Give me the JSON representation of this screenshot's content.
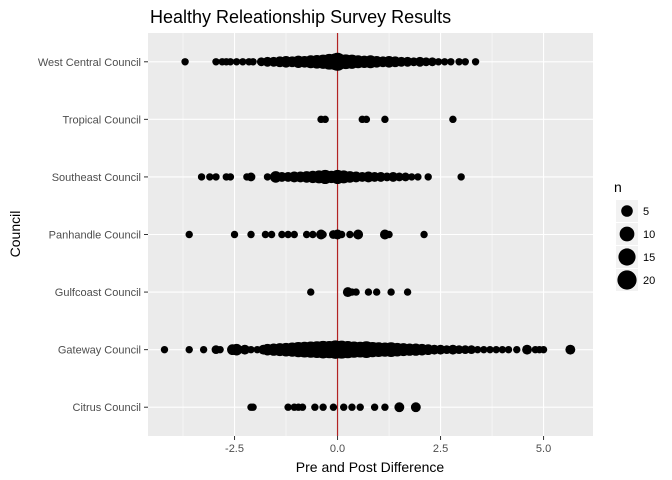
{
  "chart_data": {
    "type": "scatter",
    "title": "Healthy Releationship Survey Results",
    "xlabel": "Pre and Post Difference",
    "ylabel": "Council",
    "xlim": [
      -4.6,
      6.2
    ],
    "x_ticks": [
      -2.5,
      0.0,
      2.5,
      5.0
    ],
    "x_tick_labels": [
      "-2.5",
      "0.0",
      "2.5",
      "5.0"
    ],
    "categories": [
      "Citrus Council",
      "Gateway Council",
      "Gulfcoast Council",
      "Panhandle Council",
      "Southeast Council",
      "Tropical Council",
      "West Central Council"
    ],
    "grid": true,
    "reference_line": {
      "x": 0,
      "color": "#b22222"
    },
    "point_color": "#000000",
    "panel_color": "#ebebeb",
    "size_legend": {
      "title": "n",
      "position": "right",
      "values": [
        5,
        10,
        15,
        20
      ],
      "labels": [
        "5",
        "10",
        "15",
        "20"
      ]
    },
    "series": [
      {
        "category": "Citrus Council",
        "points": [
          [
            -2.1,
            1
          ],
          [
            -2.05,
            1
          ],
          [
            -1.2,
            1
          ],
          [
            -1.05,
            1
          ],
          [
            -0.95,
            1
          ],
          [
            -0.85,
            1
          ],
          [
            -0.55,
            1
          ],
          [
            -0.35,
            1
          ],
          [
            -0.1,
            1
          ],
          [
            0.15,
            1
          ],
          [
            0.35,
            1
          ],
          [
            0.55,
            1
          ],
          [
            0.9,
            1
          ],
          [
            1.15,
            1
          ],
          [
            1.5,
            3
          ],
          [
            1.9,
            3
          ]
        ]
      },
      {
        "category": "Gateway Council",
        "points": [
          [
            -4.2,
            1
          ],
          [
            -3.6,
            1
          ],
          [
            -3.25,
            1
          ],
          [
            -2.95,
            2
          ],
          [
            -2.85,
            1
          ],
          [
            -2.55,
            4
          ],
          [
            -2.45,
            5
          ],
          [
            -2.25,
            3
          ],
          [
            -2.1,
            1
          ],
          [
            -1.95,
            1
          ],
          [
            -1.8,
            3
          ],
          [
            -1.7,
            5
          ],
          [
            -1.55,
            6
          ],
          [
            -1.4,
            7
          ],
          [
            -1.25,
            8
          ],
          [
            -1.1,
            9
          ],
          [
            -0.95,
            11
          ],
          [
            -0.8,
            12
          ],
          [
            -0.65,
            13
          ],
          [
            -0.5,
            14
          ],
          [
            -0.35,
            16
          ],
          [
            -0.2,
            15
          ],
          [
            -0.05,
            18
          ],
          [
            0.1,
            17
          ],
          [
            0.25,
            15
          ],
          [
            0.4,
            13
          ],
          [
            0.55,
            12
          ],
          [
            0.7,
            14
          ],
          [
            0.85,
            11
          ],
          [
            1.0,
            10
          ],
          [
            1.15,
            9
          ],
          [
            1.3,
            10
          ],
          [
            1.45,
            8
          ],
          [
            1.6,
            7
          ],
          [
            1.75,
            6
          ],
          [
            1.9,
            6
          ],
          [
            2.05,
            5
          ],
          [
            2.2,
            4
          ],
          [
            2.35,
            3
          ],
          [
            2.5,
            3
          ],
          [
            2.65,
            2
          ],
          [
            2.8,
            3
          ],
          [
            2.95,
            2
          ],
          [
            3.1,
            2
          ],
          [
            3.25,
            2
          ],
          [
            3.4,
            1
          ],
          [
            3.55,
            1
          ],
          [
            3.7,
            1
          ],
          [
            3.85,
            1
          ],
          [
            4.0,
            1
          ],
          [
            4.15,
            1
          ],
          [
            4.35,
            1
          ],
          [
            4.6,
            3
          ],
          [
            4.8,
            1
          ],
          [
            4.9,
            1
          ],
          [
            5.0,
            1
          ],
          [
            5.65,
            3
          ]
        ]
      },
      {
        "category": "Gulfcoast Council",
        "points": [
          [
            -0.65,
            1
          ],
          [
            0.25,
            3
          ],
          [
            0.35,
            1
          ],
          [
            0.45,
            1
          ],
          [
            0.75,
            1
          ],
          [
            0.95,
            1
          ],
          [
            1.3,
            1
          ],
          [
            1.7,
            1
          ]
        ]
      },
      {
        "category": "Panhandle Council",
        "points": [
          [
            -3.6,
            1
          ],
          [
            -2.5,
            1
          ],
          [
            -2.1,
            1
          ],
          [
            -1.75,
            1
          ],
          [
            -1.6,
            1
          ],
          [
            -1.35,
            1
          ],
          [
            -1.2,
            1
          ],
          [
            -1.05,
            1
          ],
          [
            -0.75,
            1
          ],
          [
            -0.6,
            1
          ],
          [
            -0.4,
            3
          ],
          [
            -0.35,
            1
          ],
          [
            -0.1,
            2
          ],
          [
            0.0,
            3
          ],
          [
            0.1,
            1
          ],
          [
            0.3,
            1
          ],
          [
            0.5,
            3
          ],
          [
            1.15,
            3
          ],
          [
            1.25,
            1
          ],
          [
            2.1,
            1
          ]
        ]
      },
      {
        "category": "Southeast Council",
        "points": [
          [
            -3.3,
            1
          ],
          [
            -3.1,
            1
          ],
          [
            -2.95,
            1
          ],
          [
            -2.7,
            1
          ],
          [
            -2.6,
            1
          ],
          [
            -2.2,
            1
          ],
          [
            -2.1,
            2
          ],
          [
            -1.7,
            1
          ],
          [
            -1.5,
            5
          ],
          [
            -1.35,
            3
          ],
          [
            -1.2,
            3
          ],
          [
            -1.05,
            4
          ],
          [
            -0.9,
            4
          ],
          [
            -0.75,
            5
          ],
          [
            -0.6,
            6
          ],
          [
            -0.45,
            7
          ],
          [
            -0.3,
            9
          ],
          [
            -0.15,
            6
          ],
          [
            0.0,
            9
          ],
          [
            0.15,
            7
          ],
          [
            0.3,
            5
          ],
          [
            0.45,
            4
          ],
          [
            0.6,
            3
          ],
          [
            0.75,
            4
          ],
          [
            0.9,
            3
          ],
          [
            1.05,
            3
          ],
          [
            1.2,
            2
          ],
          [
            1.35,
            3
          ],
          [
            1.5,
            2
          ],
          [
            1.65,
            2
          ],
          [
            1.8,
            1
          ],
          [
            1.95,
            1
          ],
          [
            2.2,
            1
          ],
          [
            3.0,
            1
          ]
        ]
      },
      {
        "category": "Tropical Council",
        "points": [
          [
            -0.4,
            1
          ],
          [
            -0.3,
            1
          ],
          [
            0.6,
            1
          ],
          [
            0.7,
            1
          ],
          [
            1.15,
            1
          ],
          [
            2.8,
            1
          ]
        ]
      },
      {
        "category": "West Central Council",
        "points": [
          [
            -3.7,
            1
          ],
          [
            -2.95,
            1
          ],
          [
            -2.8,
            1
          ],
          [
            -2.7,
            1
          ],
          [
            -2.6,
            1
          ],
          [
            -2.45,
            1
          ],
          [
            -2.3,
            1
          ],
          [
            -2.15,
            1
          ],
          [
            -2.05,
            1
          ],
          [
            -1.85,
            2
          ],
          [
            -1.7,
            3
          ],
          [
            -1.55,
            3
          ],
          [
            -1.4,
            4
          ],
          [
            -1.25,
            5
          ],
          [
            -1.1,
            4
          ],
          [
            -0.95,
            6
          ],
          [
            -0.8,
            5
          ],
          [
            -0.65,
            7
          ],
          [
            -0.5,
            8
          ],
          [
            -0.35,
            9
          ],
          [
            -0.2,
            12
          ],
          [
            -0.05,
            14
          ],
          [
            0.0,
            17
          ],
          [
            0.2,
            10
          ],
          [
            0.35,
            9
          ],
          [
            0.5,
            7
          ],
          [
            0.65,
            6
          ],
          [
            0.8,
            7
          ],
          [
            0.95,
            5
          ],
          [
            1.1,
            4
          ],
          [
            1.25,
            5
          ],
          [
            1.4,
            4
          ],
          [
            1.55,
            3
          ],
          [
            1.7,
            3
          ],
          [
            1.85,
            2
          ],
          [
            2.0,
            3
          ],
          [
            2.15,
            2
          ],
          [
            2.3,
            2
          ],
          [
            2.45,
            1
          ],
          [
            2.6,
            1
          ],
          [
            2.75,
            1
          ],
          [
            2.95,
            1
          ],
          [
            3.1,
            1
          ],
          [
            3.35,
            1
          ]
        ]
      }
    ]
  }
}
